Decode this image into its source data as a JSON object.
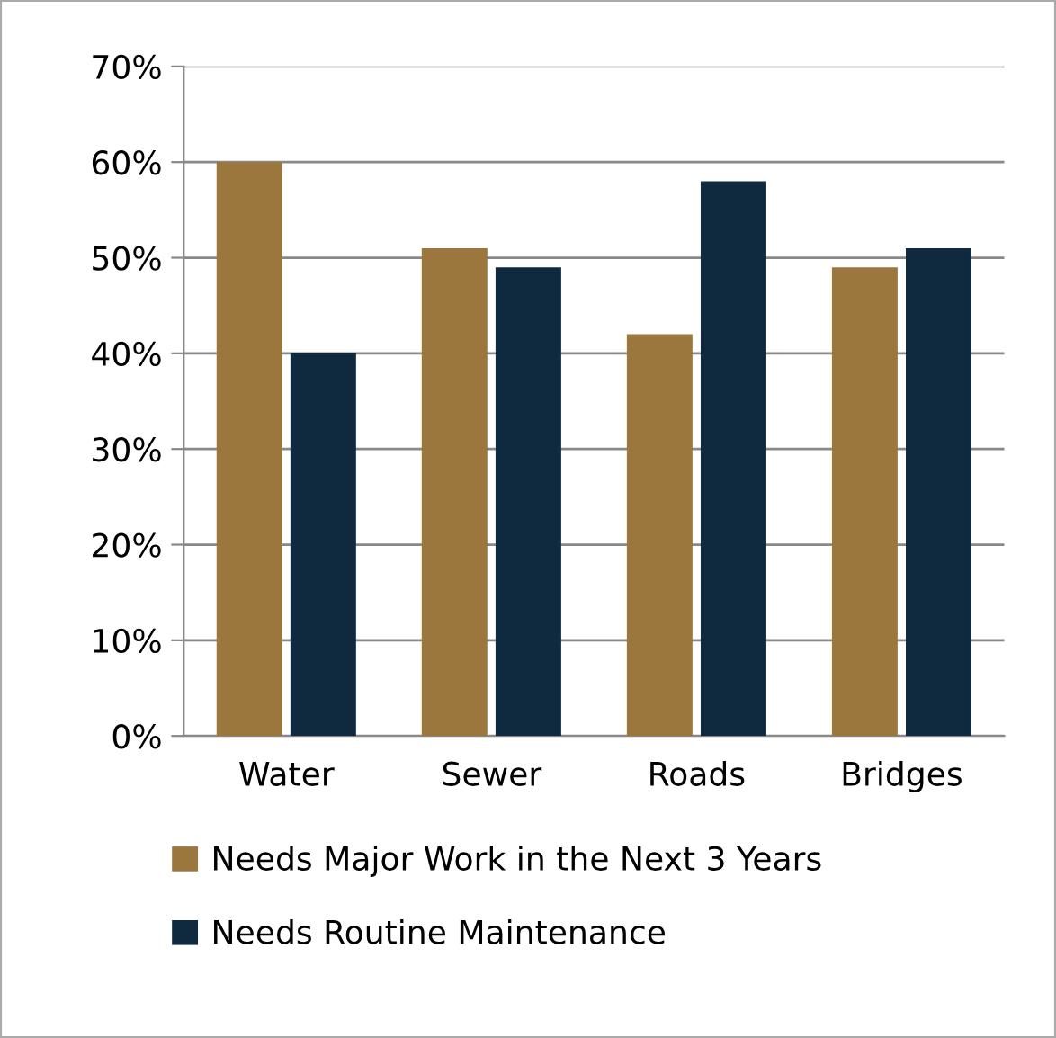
{
  "chart_data": {
    "type": "bar",
    "categories": [
      "Water",
      "Sewer",
      "Roads",
      "Bridges"
    ],
    "series": [
      {
        "name": "Needs Major Work in the Next 3 Years",
        "color": "#9b773d",
        "values": [
          60,
          51,
          42,
          49
        ]
      },
      {
        "name": "Needs Routine Maintenance",
        "color": "#0f2a3f",
        "values": [
          40,
          49,
          58,
          51
        ]
      }
    ],
    "ylim": [
      0,
      70
    ],
    "yticks": [
      {
        "value": 0,
        "label": "0%"
      },
      {
        "value": 10,
        "label": "10%"
      },
      {
        "value": 20,
        "label": "20%"
      },
      {
        "value": 30,
        "label": "30%"
      },
      {
        "value": 40,
        "label": "40%"
      },
      {
        "value": 50,
        "label": "50%"
      },
      {
        "value": 60,
        "label": "60%"
      },
      {
        "value": 70,
        "label": "70%"
      }
    ],
    "grid": "y",
    "legend": "bottom"
  }
}
